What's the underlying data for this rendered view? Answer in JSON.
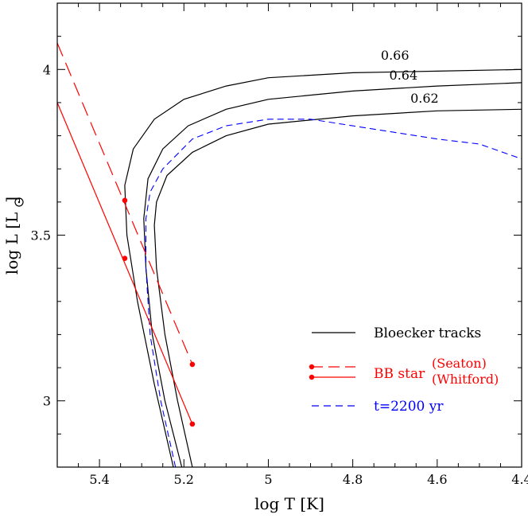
{
  "chart_data": {
    "type": "line",
    "xlabel": "log T [K]",
    "ylabel_main": "log L [L",
    "ylabel_close": "]",
    "xlim": [
      5.5,
      4.4
    ],
    "ylim": [
      2.8,
      4.2
    ],
    "x_reversed": true,
    "xticks": [
      5.4,
      5.2,
      5.0,
      4.8,
      4.6,
      4.4
    ],
    "xtick_labels": [
      "5.4",
      "5.2",
      "5",
      "4.8",
      "4.6",
      "4.4"
    ],
    "yticks": [
      3.0,
      3.5,
      4.0
    ],
    "ytick_labels": [
      "3",
      "3.5",
      "4"
    ],
    "tracks": [
      {
        "label": "0.66",
        "label_pos": [
          4.7,
          4.03
        ],
        "points": [
          [
            5.225,
            2.8
          ],
          [
            5.27,
            3.05
          ],
          [
            5.31,
            3.3
          ],
          [
            5.335,
            3.5
          ],
          [
            5.34,
            3.65
          ],
          [
            5.32,
            3.76
          ],
          [
            5.27,
            3.85
          ],
          [
            5.2,
            3.91
          ],
          [
            5.1,
            3.95
          ],
          [
            5.0,
            3.975
          ],
          [
            4.8,
            3.99
          ],
          [
            4.6,
            3.995
          ],
          [
            4.4,
            4.0
          ]
        ]
      },
      {
        "label": "0.64",
        "label_pos": [
          4.68,
          3.97
        ],
        "points": [
          [
            5.205,
            2.8
          ],
          [
            5.245,
            3.0
          ],
          [
            5.275,
            3.2
          ],
          [
            5.29,
            3.4
          ],
          [
            5.295,
            3.55
          ],
          [
            5.285,
            3.67
          ],
          [
            5.25,
            3.76
          ],
          [
            5.19,
            3.83
          ],
          [
            5.1,
            3.88
          ],
          [
            5.0,
            3.91
          ],
          [
            4.8,
            3.935
          ],
          [
            4.6,
            3.95
          ],
          [
            4.4,
            3.96
          ]
        ]
      },
      {
        "label": "0.62",
        "label_pos": [
          4.63,
          3.9
        ],
        "points": [
          [
            5.18,
            2.8
          ],
          [
            5.215,
            3.0
          ],
          [
            5.245,
            3.2
          ],
          [
            5.265,
            3.4
          ],
          [
            5.27,
            3.53
          ],
          [
            5.265,
            3.6
          ],
          [
            5.24,
            3.68
          ],
          [
            5.18,
            3.75
          ],
          [
            5.1,
            3.8
          ],
          [
            5.0,
            3.835
          ],
          [
            4.8,
            3.86
          ],
          [
            4.6,
            3.875
          ],
          [
            4.4,
            3.88
          ]
        ]
      }
    ],
    "blue_track": {
      "points": [
        [
          5.22,
          2.8
        ],
        [
          5.255,
          3.0
        ],
        [
          5.28,
          3.2
        ],
        [
          5.29,
          3.4
        ],
        [
          5.29,
          3.55
        ],
        [
          5.28,
          3.63
        ],
        [
          5.25,
          3.7
        ],
        [
          5.18,
          3.79
        ],
        [
          5.1,
          3.83
        ],
        [
          5.0,
          3.85
        ],
        [
          4.9,
          3.85
        ],
        [
          4.8,
          3.83
        ],
        [
          4.6,
          3.79
        ],
        [
          4.5,
          3.775
        ],
        [
          4.4,
          3.73
        ]
      ]
    },
    "bb_seaton": {
      "line": [
        [
          5.5,
          4.08
        ],
        [
          5.18,
          3.11
        ]
      ],
      "points": [
        [
          5.34,
          3.605
        ],
        [
          5.18,
          3.11
        ]
      ]
    },
    "bb_whitford": {
      "line": [
        [
          5.5,
          3.9
        ],
        [
          5.18,
          2.93
        ]
      ],
      "points": [
        [
          5.34,
          3.43
        ],
        [
          5.18,
          2.93
        ]
      ]
    },
    "legend": {
      "placement": "bottom-right",
      "tracks_label": "Bloecker tracks",
      "bb_label": "BB star",
      "seaton_label": "(Seaton)",
      "whitford_label": "(Whitford)",
      "time_label": "t=2200 yr"
    },
    "colors": {
      "tracks": "#000000",
      "bb": "#ff0000",
      "time": "#0000ff",
      "axes": "#000000"
    }
  }
}
